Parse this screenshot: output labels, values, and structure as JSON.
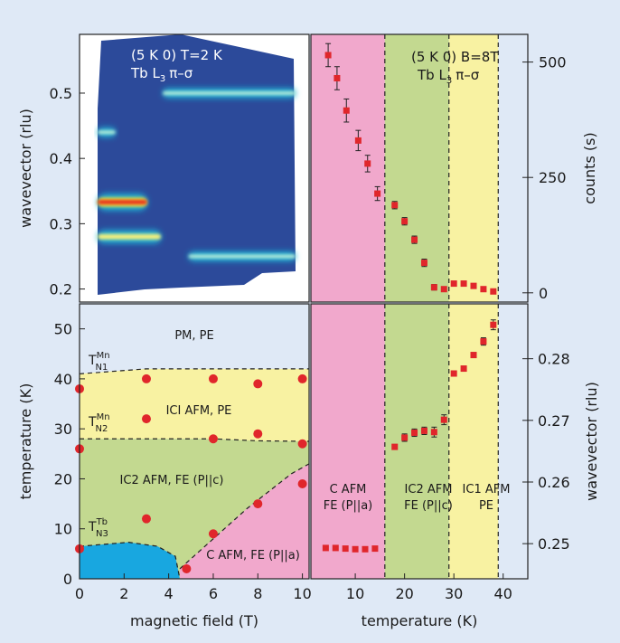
{
  "colors": {
    "background": "#dfe9f6",
    "pink": "#f1a8cc",
    "green": "#c3d990",
    "yellow": "#f8f2a2",
    "cyan": "#18a7e0",
    "paleblue": "#dfe9f6",
    "marker": "#e0262b",
    "heatmap_bg": "#2c4a9a"
  },
  "chart_data": [
    {
      "type": "heatmap",
      "panel": "top-left",
      "annotation_line1": "(5 K 0) T=2 K",
      "annotation_line2": "Tb L",
      "annotation_sub": "3",
      "annotation_tail": "π–σ",
      "ylabel": "wavevector (rlu)",
      "ylim": [
        0.18,
        0.59
      ],
      "yticks": [
        "0.2",
        "0.3",
        "0.4",
        "0.5"
      ],
      "ytick_values": [
        0.2,
        0.3,
        0.4,
        0.5
      ],
      "x_range": [
        0,
        10
      ],
      "streaks": [
        {
          "q": 0.333,
          "x_start": 0,
          "x_end": 2.5,
          "intensity": "max"
        },
        {
          "q": 0.28,
          "x_start": 0,
          "x_end": 3.2,
          "intensity": "high"
        },
        {
          "q": 0.44,
          "x_start": 0,
          "x_end": 0.9,
          "intensity": "medium"
        },
        {
          "q": 0.5,
          "x_start": 3.3,
          "x_end": 10,
          "intensity": "medium"
        },
        {
          "q": 0.25,
          "x_start": 4.6,
          "x_end": 10,
          "intensity": "medium"
        }
      ]
    },
    {
      "type": "scatter",
      "panel": "top-right",
      "annotation_line1": "(5 K 0) B=8T",
      "annotation_line2": "Tb L",
      "annotation_sub": "3",
      "annotation_tail": "π–σ",
      "ylabel": "counts (s)",
      "yticks": [
        "0",
        "250",
        "500"
      ],
      "ytick_values": [
        0,
        250,
        500
      ],
      "ylim": [
        -20,
        560
      ],
      "xlim": [
        1,
        45
      ],
      "bands": [
        {
          "from": 1,
          "to": 16,
          "color": "pink"
        },
        {
          "from": 16,
          "to": 29,
          "color": "green"
        },
        {
          "from": 29,
          "to": 39,
          "color": "yellow"
        }
      ],
      "points": [
        {
          "x": 4.5,
          "y": 515,
          "err": 25
        },
        {
          "x": 6.3,
          "y": 465,
          "err": 25
        },
        {
          "x": 8.2,
          "y": 395,
          "err": 25
        },
        {
          "x": 10.6,
          "y": 330,
          "err": 22
        },
        {
          "x": 12.5,
          "y": 280,
          "err": 18
        },
        {
          "x": 14.5,
          "y": 215,
          "err": 15
        },
        {
          "x": 18,
          "y": 190,
          "err": 8
        },
        {
          "x": 20,
          "y": 155,
          "err": 8
        },
        {
          "x": 22,
          "y": 115,
          "err": 8
        },
        {
          "x": 24,
          "y": 65,
          "err": 8
        },
        {
          "x": 26,
          "y": 12,
          "err": 6
        },
        {
          "x": 28,
          "y": 8,
          "err": 5
        },
        {
          "x": 30,
          "y": 20,
          "err": 0
        },
        {
          "x": 32,
          "y": 20,
          "err": 0
        },
        {
          "x": 34,
          "y": 15,
          "err": 0
        },
        {
          "x": 36,
          "y": 8,
          "err": 0
        },
        {
          "x": 38,
          "y": 3,
          "err": 0
        }
      ]
    },
    {
      "type": "scatter",
      "panel": "bottom-left",
      "xlabel": "magnetic field (T)",
      "ylabel": "temperature (K)",
      "xlim": [
        0,
        10.3
      ],
      "ylim": [
        0,
        55
      ],
      "xticks": [
        "0",
        "2",
        "4",
        "6",
        "8",
        "10"
      ],
      "xtick_values": [
        0,
        2,
        4,
        6,
        8,
        10
      ],
      "yticks": [
        "0",
        "10",
        "20",
        "30",
        "40",
        "50"
      ],
      "ytick_values": [
        0,
        10,
        20,
        30,
        40,
        50
      ],
      "region_labels": {
        "pm": "PM, PE",
        "ic1": "ICI AFM, PE",
        "ic2": "IC2 AFM, FE (P||c)",
        "cafm": "C AFM, FE (P||a)"
      },
      "transition_labels": {
        "tn1_main": "T",
        "tn1_sup": "Mn",
        "tn1_sub": "N1",
        "tn2_main": "T",
        "tn2_sup": "Mn",
        "tn2_sub": "N2",
        "tn3_main": "T",
        "tn3_sup": "Tb",
        "tn3_sub": "N3"
      },
      "boundaries": {
        "tn1": [
          [
            0,
            41
          ],
          [
            3,
            42
          ],
          [
            6,
            42
          ],
          [
            8,
            42
          ],
          [
            10.3,
            42
          ]
        ],
        "tn2": [
          [
            0,
            28
          ],
          [
            3,
            28
          ],
          [
            6,
            28
          ],
          [
            8,
            27.6
          ],
          [
            10.3,
            27.5
          ]
        ],
        "ic2_cafm": [
          [
            4.5,
            2
          ],
          [
            5.5,
            6
          ],
          [
            6.5,
            10
          ],
          [
            7.5,
            14
          ],
          [
            8.5,
            17.5
          ],
          [
            9.5,
            21
          ],
          [
            10.3,
            23
          ]
        ],
        "tn3": [
          [
            0,
            6.5
          ],
          [
            2.2,
            7.3
          ],
          [
            3.5,
            6.5
          ],
          [
            4.3,
            4.5
          ],
          [
            4.5,
            0
          ]
        ]
      },
      "points": [
        {
          "x": 0,
          "y": 38
        },
        {
          "x": 0,
          "y": 26
        },
        {
          "x": 0,
          "y": 6
        },
        {
          "x": 3,
          "y": 40
        },
        {
          "x": 3,
          "y": 32
        },
        {
          "x": 3,
          "y": 12
        },
        {
          "x": 4.8,
          "y": 2
        },
        {
          "x": 6,
          "y": 40
        },
        {
          "x": 6,
          "y": 28
        },
        {
          "x": 6,
          "y": 9
        },
        {
          "x": 8,
          "y": 39
        },
        {
          "x": 8,
          "y": 29
        },
        {
          "x": 8,
          "y": 15
        },
        {
          "x": 10,
          "y": 40
        },
        {
          "x": 10,
          "y": 27
        },
        {
          "x": 10,
          "y": 19
        }
      ]
    },
    {
      "type": "scatter",
      "panel": "bottom-right",
      "xlabel": "temperature (K)",
      "ylabel": "wavevector (rlu)",
      "xlim": [
        1,
        45
      ],
      "ylim": [
        0.2443,
        0.2889
      ],
      "xticks": [
        "10",
        "20",
        "30",
        "40"
      ],
      "xtick_values": [
        10,
        20,
        30,
        40
      ],
      "yticks": [
        "0.25",
        "0.26",
        "0.27",
        "0.28"
      ],
      "ytick_values": [
        0.25,
        0.26,
        0.27,
        0.28
      ],
      "bands": [
        {
          "from": 1,
          "to": 16,
          "color": "pink"
        },
        {
          "from": 16,
          "to": 29,
          "color": "green"
        },
        {
          "from": 29,
          "to": 39,
          "color": "yellow"
        }
      ],
      "band_labels": [
        {
          "line1": "C AFM",
          "line2": "FE (P||a)"
        },
        {
          "line1": "IC2 AFM",
          "line2": "FE (P||c)"
        },
        {
          "line1": "IC1 AFM",
          "line2": "PE"
        }
      ],
      "points": [
        {
          "x": 4,
          "y": 0.2493,
          "err": 0
        },
        {
          "x": 6,
          "y": 0.2493,
          "err": 0
        },
        {
          "x": 8,
          "y": 0.2492,
          "err": 0
        },
        {
          "x": 10,
          "y": 0.2491,
          "err": 0
        },
        {
          "x": 12,
          "y": 0.2491,
          "err": 0
        },
        {
          "x": 14,
          "y": 0.2492,
          "err": 0
        },
        {
          "x": 18,
          "y": 0.2657,
          "err": 0.0004
        },
        {
          "x": 20,
          "y": 0.2672,
          "err": 0.0006
        },
        {
          "x": 22,
          "y": 0.268,
          "err": 0.0006
        },
        {
          "x": 24,
          "y": 0.2683,
          "err": 0.0006
        },
        {
          "x": 26,
          "y": 0.2681,
          "err": 0.0008
        },
        {
          "x": 28,
          "y": 0.2701,
          "err": 0.0008
        },
        {
          "x": 30,
          "y": 0.2776,
          "err": 0.0004
        },
        {
          "x": 32,
          "y": 0.2784,
          "err": 0.0004
        },
        {
          "x": 34,
          "y": 0.2806,
          "err": 0.0004
        },
        {
          "x": 36,
          "y": 0.2828,
          "err": 0.0006
        },
        {
          "x": 38,
          "y": 0.2855,
          "err": 0.0008
        }
      ]
    }
  ]
}
